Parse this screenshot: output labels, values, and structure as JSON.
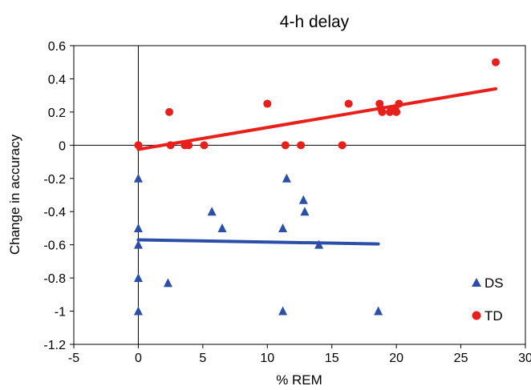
{
  "chart_data": {
    "type": "scatter",
    "title": "4-h delay",
    "xlabel": "% REM",
    "ylabel": "Change in accuracy",
    "xlim": [
      -5,
      30
    ],
    "ylim": [
      -1.2,
      0.6
    ],
    "xticks": [
      -5,
      0,
      5,
      10,
      15,
      20,
      25,
      30
    ],
    "yticks": [
      0.6,
      0.4,
      0.2,
      0,
      -0.2,
      -0.4,
      -0.6,
      -0.8,
      -1,
      -1.2
    ],
    "xtick_labels": [
      "-5",
      "0",
      "5",
      "10",
      "15",
      "20",
      "25",
      "30"
    ],
    "ytick_labels": [
      "0.6",
      "0.4",
      "0.2",
      "0",
      "-0.2",
      "-0.4",
      "-0.6",
      "-0.8",
      "-1",
      "-1.2"
    ],
    "grid": false,
    "border": true,
    "legend_position": "bottom-right",
    "series": [
      {
        "name": "DS",
        "marker": "triangle",
        "color": "#2b4fa8",
        "points": [
          [
            0,
            -0.2
          ],
          [
            0,
            -0.5
          ],
          [
            0,
            -0.6
          ],
          [
            0,
            -0.8
          ],
          [
            0,
            -1.0
          ],
          [
            2.3,
            -0.83
          ],
          [
            5.7,
            -0.4
          ],
          [
            6.5,
            -0.5
          ],
          [
            11.2,
            -0.5
          ],
          [
            11.5,
            -0.2
          ],
          [
            11.2,
            -1.0
          ],
          [
            12.8,
            -0.33
          ],
          [
            12.9,
            -0.4
          ],
          [
            14.0,
            -0.6
          ],
          [
            18.6,
            -1.0
          ]
        ],
        "trendline": [
          [
            0,
            -0.57
          ],
          [
            18.6,
            -0.595
          ]
        ]
      },
      {
        "name": "TD",
        "marker": "circle",
        "color": "#e8201c",
        "points": [
          [
            0,
            0
          ],
          [
            2.4,
            0.2
          ],
          [
            2.5,
            0
          ],
          [
            3.6,
            0
          ],
          [
            3.9,
            0
          ],
          [
            5.1,
            0
          ],
          [
            10.0,
            0.25
          ],
          [
            11.4,
            0
          ],
          [
            12.6,
            0
          ],
          [
            15.8,
            0
          ],
          [
            16.3,
            0.25
          ],
          [
            18.7,
            0.25
          ],
          [
            18.8,
            0.22
          ],
          [
            18.9,
            0.2
          ],
          [
            19.5,
            0.2
          ],
          [
            19.9,
            0.22
          ],
          [
            20.0,
            0.2
          ],
          [
            20.2,
            0.25
          ],
          [
            27.7,
            0.5
          ]
        ],
        "trendline": [
          [
            0,
            -0.025
          ],
          [
            27.7,
            0.34
          ]
        ]
      }
    ]
  }
}
